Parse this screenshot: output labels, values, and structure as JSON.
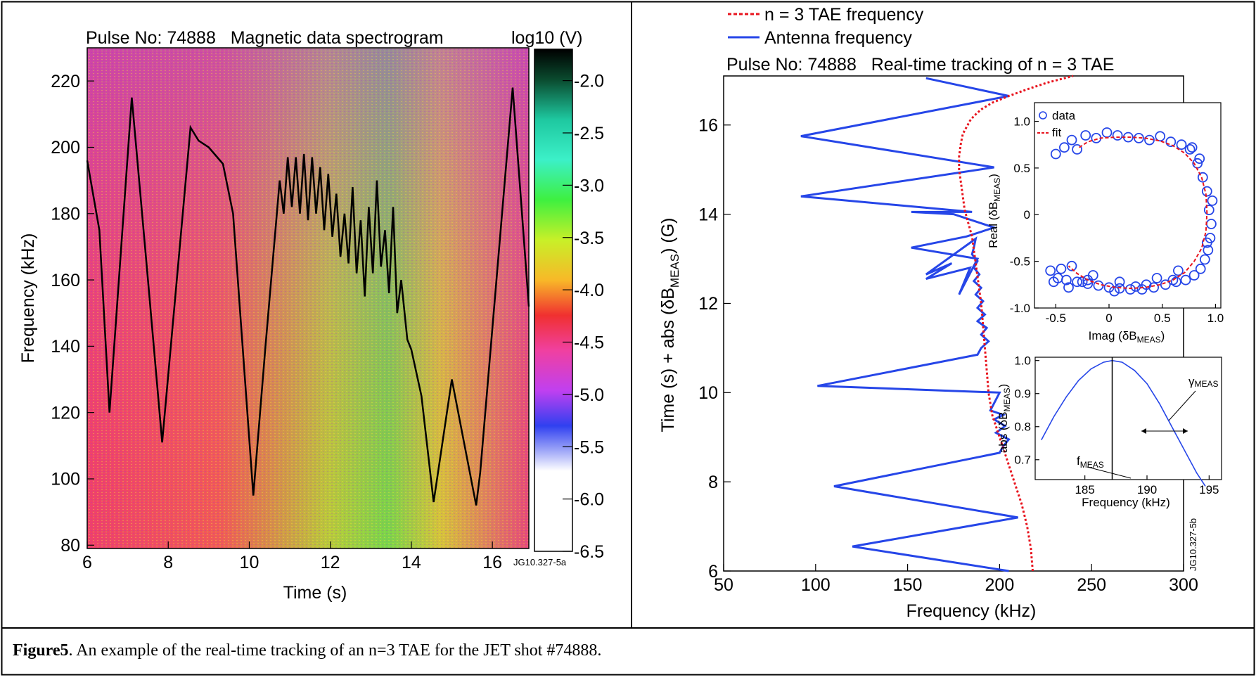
{
  "caption": {
    "label": "Figure5",
    "text": ". An example of the real-time tracking of an n=3 TAE for the JET shot #74888."
  },
  "colors": {
    "antenna": "#2646e8",
    "tae": "#e8141e",
    "frame": "#000000",
    "trace": "#000000"
  },
  "chart_data": [
    {
      "type": "heatmap",
      "title": "Pulse No: 74888   Magnetic data spectrogram",
      "xlabel": "Time (s)",
      "ylabel": "Frequency (kHz)",
      "xlim": [
        6,
        16.9
      ],
      "ylim": [
        79,
        230
      ],
      "xticks": [
        "6",
        "8",
        "10",
        "12",
        "14",
        "16"
      ],
      "yticks": [
        "80",
        "100",
        "120",
        "140",
        "160",
        "180",
        "200",
        "220"
      ],
      "tag": "JG10.327-5a",
      "colorbar": {
        "title": "log10 (V)",
        "range": [
          -6.5,
          -1.7
        ],
        "ticks": [
          "-2.0",
          "-2.5",
          "-3.0",
          "-3.5",
          "-4.0",
          "-4.5",
          "-5.0",
          "-5.5",
          "-6.0",
          "-6.5"
        ]
      },
      "series": [
        {
          "x": [
            6.0,
            6.3,
            6.55,
            7.1,
            7.5,
            7.85,
            8.55,
            8.75,
            9.0,
            9.35,
            9.6,
            10.1,
            10.4,
            10.75,
            10.85,
            10.95,
            11.05,
            11.15,
            11.25,
            11.35,
            11.45,
            11.55,
            11.65,
            11.75,
            11.85,
            11.95,
            12.05,
            12.15,
            12.25,
            12.35,
            12.45,
            12.55,
            12.65,
            12.75,
            12.85,
            12.95,
            13.05,
            13.15,
            13.25,
            13.35,
            13.45,
            13.55,
            13.65,
            13.75,
            13.9,
            14.0,
            14.25,
            14.55,
            15.0,
            15.6,
            15.7,
            16.5,
            16.9
          ],
          "y": [
            196,
            175,
            120,
            215,
            160,
            111,
            206,
            202,
            200,
            195,
            180,
            95,
            140,
            190,
            180,
            197,
            182,
            197,
            180,
            198,
            178,
            197,
            180,
            194,
            175,
            192,
            173,
            186,
            167,
            180,
            165,
            188,
            162,
            178,
            155,
            182,
            162,
            190,
            164,
            175,
            156,
            182,
            150,
            160,
            142,
            139,
            125,
            93,
            130,
            92,
            102,
            218,
            152
          ]
        }
      ]
    },
    {
      "type": "line",
      "title": "Pulse No: 74888   Real-time tracking of n = 3 TAE",
      "xlabel": "Frequency (kHz)",
      "ylabel_main": "Time (s) + abs (δB",
      "ylabel_sub": "MEAS",
      "ylabel_tail": ") (G)",
      "xlim": [
        50,
        300
      ],
      "ylim": [
        6,
        17.1
      ],
      "xticks": [
        "50",
        "100",
        "150",
        "200",
        "250",
        "300"
      ],
      "yticks": [
        "6",
        "8",
        "10",
        "12",
        "14",
        "16"
      ],
      "tag": "JG10.327-5b",
      "legend": [
        "n = 3 TAE frequency",
        "Antenna frequency"
      ],
      "series": [
        {
          "name": "n = 3 TAE frequency",
          "x": [
            218,
            217,
            215,
            212,
            208,
            204,
            200,
            196,
            194,
            193,
            192,
            191,
            190,
            189,
            188,
            187,
            186,
            185,
            183,
            181,
            180,
            179,
            178,
            178,
            179,
            180,
            182,
            184,
            186,
            190,
            196,
            205,
            215,
            226,
            240
          ],
          "y": [
            6.0,
            6.5,
            7.0,
            7.5,
            8.0,
            8.5,
            9.0,
            9.5,
            10.0,
            10.5,
            11.0,
            11.5,
            12.0,
            12.3,
            12.6,
            12.9,
            13.2,
            13.5,
            13.8,
            14.1,
            14.4,
            14.7,
            15.0,
            15.3,
            15.6,
            15.8,
            15.95,
            16.1,
            16.2,
            16.35,
            16.5,
            16.65,
            16.8,
            16.95,
            17.1
          ]
        },
        {
          "name": "Antenna frequency",
          "x": [
            205,
            120,
            210,
            110,
            200,
            202,
            205,
            198,
            203,
            197,
            202,
            195,
            200,
            101,
            188,
            190,
            194,
            190,
            193,
            188,
            192,
            188,
            191,
            187,
            190,
            186,
            189,
            186,
            188,
            185,
            186,
            187,
            160,
            174,
            160,
            184,
            178,
            188,
            152,
            182,
            197,
            175,
            152,
            185,
            92,
            197,
            92,
            205,
            160
          ],
          "y": [
            6.0,
            6.55,
            7.2,
            7.9,
            8.65,
            8.8,
            8.95,
            9.1,
            9.25,
            9.4,
            9.5,
            9.6,
            10.0,
            10.15,
            10.85,
            11.0,
            11.15,
            11.3,
            11.45,
            11.6,
            11.75,
            11.9,
            12.05,
            12.2,
            12.35,
            12.5,
            12.65,
            12.8,
            12.95,
            13.1,
            13.25,
            13.45,
            12.65,
            12.9,
            12.55,
            12.8,
            12.2,
            13.0,
            13.25,
            13.5,
            13.7,
            14.0,
            14.05,
            14.05,
            14.4,
            15.05,
            15.75,
            16.65,
            17.05
          ]
        }
      ]
    },
    {
      "type": "scatter",
      "xlabel_main": "Imag (δB",
      "xlabel_sub": "MEAS",
      "xlabel_tail": ")",
      "ylabel_main": "Real (δB",
      "ylabel_sub": "MEAS",
      "ylabel_tail": ")",
      "xlim": [
        -0.7,
        1.05
      ],
      "ylim": [
        -1.0,
        1.2
      ],
      "xticks": [
        "-0.5",
        "0",
        "0.5",
        "1.0"
      ],
      "yticks": [
        "-1.0",
        "-0.5",
        "0",
        "0.5",
        "1.0"
      ],
      "legend": [
        "data",
        "fit"
      ],
      "series": [
        {
          "name": "data",
          "x": [
            -0.5,
            -0.42,
            -0.35,
            -0.3,
            -0.22,
            -0.12,
            -0.02,
            0.08,
            0.18,
            0.28,
            0.38,
            0.48,
            0.58,
            0.68,
            0.76,
            0.83,
            0.88,
            0.92,
            0.94,
            0.96,
            0.95,
            0.93,
            0.9,
            0.86,
            0.8,
            0.72,
            0.63,
            0.53,
            0.42,
            0.31,
            0.2,
            0.1,
            0.0,
            -0.1,
            -0.2,
            -0.3,
            -0.4,
            -0.48,
            -0.55,
            -0.45,
            -0.35,
            -0.25,
            -0.15,
            0.05,
            0.25,
            0.45,
            0.65,
            0.85,
            0.92,
            0.97,
            -0.52,
            -0.38,
            -0.2,
            0.1,
            0.35,
            0.6,
            0.78
          ],
          "y": [
            0.65,
            0.72,
            0.8,
            0.7,
            0.85,
            0.82,
            0.88,
            0.85,
            0.83,
            0.82,
            0.8,
            0.84,
            0.78,
            0.75,
            0.7,
            0.55,
            0.4,
            0.25,
            0.05,
            -0.1,
            -0.25,
            -0.38,
            -0.48,
            -0.58,
            -0.65,
            -0.7,
            -0.72,
            -0.75,
            -0.78,
            -0.8,
            -0.8,
            -0.79,
            -0.78,
            -0.76,
            -0.74,
            -0.72,
            -0.7,
            -0.68,
            -0.6,
            -0.58,
            -0.55,
            -0.72,
            -0.65,
            -0.82,
            -0.77,
            -0.68,
            -0.6,
            0.6,
            -0.3,
            0.15,
            -0.72,
            -0.78,
            -0.7,
            -0.72,
            -0.75,
            -0.7,
            0.72
          ]
        },
        {
          "name": "fit",
          "x": [
            -0.28,
            -0.2,
            -0.08,
            0.06,
            0.2,
            0.34,
            0.48,
            0.6,
            0.71,
            0.8,
            0.87,
            0.91,
            0.92,
            0.91,
            0.87,
            0.8,
            0.71,
            0.6,
            0.48,
            0.34,
            0.2,
            0.06,
            -0.08,
            -0.2,
            -0.3,
            -0.38
          ],
          "y": [
            0.72,
            0.78,
            0.82,
            0.83,
            0.83,
            0.82,
            0.79,
            0.74,
            0.66,
            0.55,
            0.4,
            0.22,
            0.02,
            -0.18,
            -0.36,
            -0.5,
            -0.62,
            -0.7,
            -0.75,
            -0.78,
            -0.79,
            -0.78,
            -0.75,
            -0.7,
            -0.63,
            -0.55
          ]
        }
      ]
    },
    {
      "type": "line",
      "xlabel": "Frequency (kHz)",
      "ylabel_main": "abs (δB",
      "ylabel_sub": "MEAS",
      "ylabel_tail": ")",
      "xlim": [
        181,
        196
      ],
      "ylim": [
        0.64,
        1.01
      ],
      "xticks": [
        "185",
        "190",
        "195"
      ],
      "yticks": [
        "0.7",
        "0.8",
        "0.9",
        "1.0"
      ],
      "annotations": {
        "f_main": "f",
        "f_sub": "MEAS",
        "gamma_main": "γ",
        "gamma_sub": "MEAS"
      },
      "f_meas": 187.2,
      "series": [
        {
          "x": [
            181.5,
            182.5,
            183.5,
            184.5,
            185.5,
            186.5,
            187.2,
            188,
            189,
            190,
            191,
            192,
            193,
            194,
            194.7
          ],
          "y": [
            0.76,
            0.83,
            0.89,
            0.94,
            0.975,
            0.995,
            1.0,
            0.995,
            0.97,
            0.93,
            0.87,
            0.8,
            0.73,
            0.66,
            0.62
          ]
        }
      ]
    }
  ]
}
